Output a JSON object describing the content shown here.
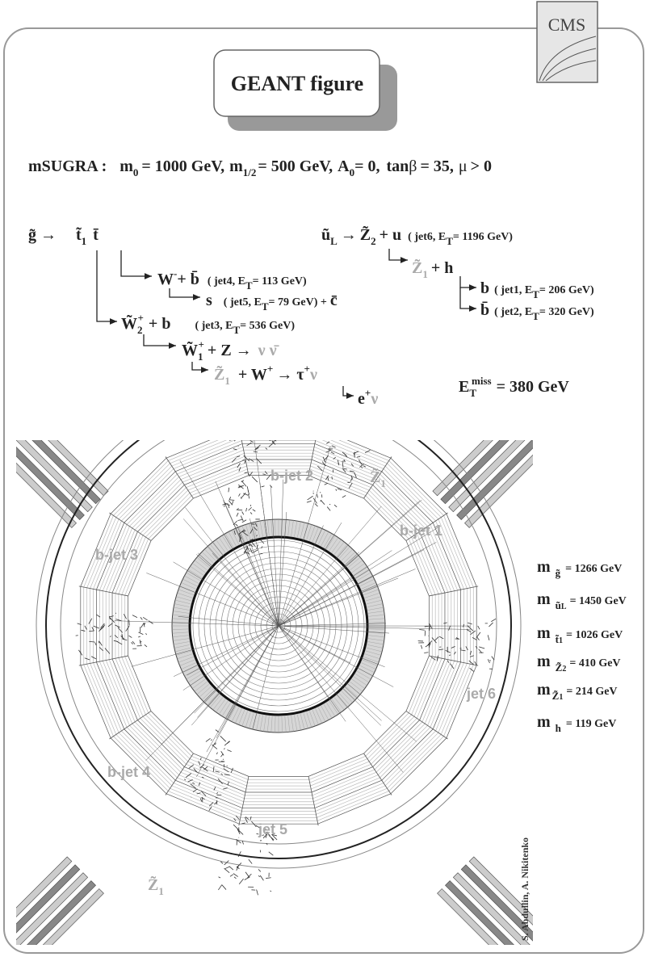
{
  "logo": "CMS",
  "header": {
    "title": "GEANT figure"
  },
  "model": [
    "mSUGRA :",
    "m",
    "0",
    "= 1000 GeV,",
    "m",
    "1/2",
    "= 500 GeV,",
    "A",
    "0",
    "= 0,",
    "tan",
    "β",
    "= 35,",
    "μ",
    "> 0"
  ],
  "decay": [
    [
      "g̃ →",
      "t̃",
      "1",
      "t̄"
    ],
    [
      "ũ",
      "L",
      "→",
      "Z̃",
      "2",
      "+ u",
      "( jet6, E",
      "T",
      "= 1196 GeV)"
    ],
    [
      "Z̃",
      "1",
      "+ h"
    ],
    [
      "W",
      "-",
      "+ b̄",
      "( jet4, E",
      "T",
      "= 113 GeV)"
    ],
    [
      "s",
      "( jet5, E",
      "T",
      "= 79 GeV) +",
      "c̄"
    ],
    [
      "b",
      "( jet1, E",
      "T",
      "= 206 GeV)"
    ],
    [
      "b̄",
      "( jet2, E",
      "T",
      "= 320 GeV)"
    ],
    [
      "W̃",
      "2",
      "+",
      "+ b",
      "( jet3, E",
      "T",
      "= 536 GeV)"
    ],
    [
      "W̃",
      "1",
      "+",
      "+ Z →",
      "ν ν̄"
    ],
    [
      "Z̃",
      "1",
      "+ W",
      "+",
      "→ τ",
      "+",
      "ν"
    ],
    [
      "e",
      "+",
      "ν"
    ]
  ],
  "missing_et": [
    "E",
    "T",
    "miss",
    "= 380 GeV"
  ],
  "masses": [
    [
      "m",
      "g̃",
      "= 1266 GeV"
    ],
    [
      "m",
      "ũ",
      "L",
      "= 1450 GeV"
    ],
    [
      "m",
      "t̃",
      "1",
      "= 1026 GeV"
    ],
    [
      "m",
      "Z̃",
      "2",
      "= 410 GeV"
    ],
    [
      "m",
      "Z̃",
      "1",
      "= 214 GeV"
    ],
    [
      "m",
      "h",
      "= 119 GeV"
    ]
  ],
  "event_labels": [
    "b-jet 2",
    "b-jet 1",
    "b-jet 3",
    "jet 6",
    "b-jet 4",
    "jet 5"
  ],
  "neutralino_labels": [
    [
      "Z̃",
      "1"
    ],
    [
      "Z̃",
      "1"
    ]
  ],
  "credit": "S. Abdullin, A. Nikitenko"
}
